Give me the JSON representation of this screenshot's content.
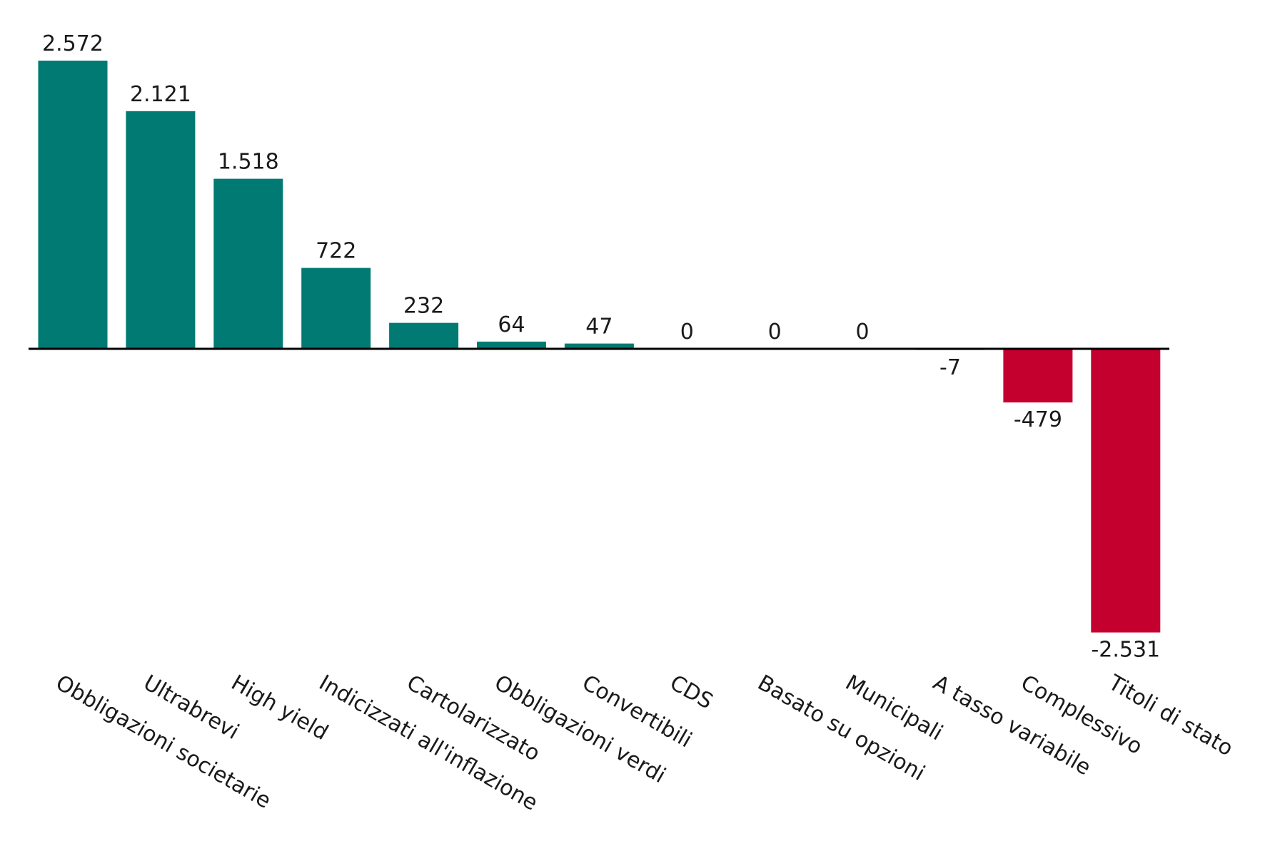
{
  "chart_data": {
    "type": "bar",
    "title": "",
    "xlabel": "",
    "ylabel": "",
    "ylim": [
      -2531,
      2572
    ],
    "grid": false,
    "legend": "none",
    "colors": {
      "positive": "#007A72",
      "negative": "#C4002F",
      "zero": "#CFCFCF",
      "axis": "#000000"
    },
    "categories": [
      "Obbligazioni societarie",
      "Ultrabrevi",
      "High yield",
      "Indicizzati all'inflazione",
      "Cartolarizzato",
      "Obbligazioni verdi",
      "Convertibili",
      "CDS",
      "Basato su opzioni",
      "Municipali",
      "A tasso variabile",
      "Complessivo",
      "Titoli di stato"
    ],
    "values": [
      2572,
      2121,
      1518,
      722,
      232,
      64,
      47,
      0,
      0,
      0,
      -7,
      -479,
      -2531
    ],
    "value_labels": [
      "2.572",
      "2.121",
      "1.518",
      "722",
      "232",
      "64",
      "47",
      "0",
      "0",
      "0",
      "-7",
      "-479",
      "-2.531"
    ]
  }
}
